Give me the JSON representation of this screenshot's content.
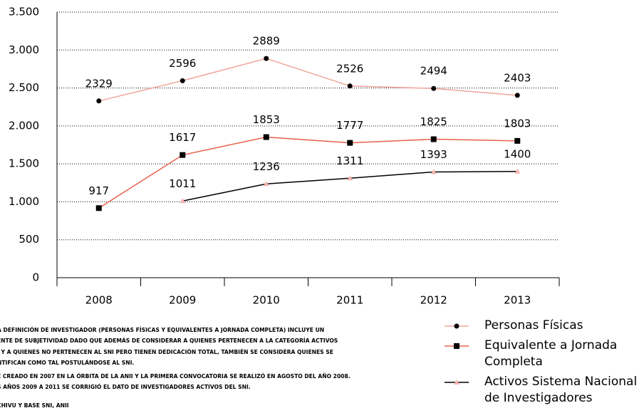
{
  "chart_data": {
    "type": "line",
    "categories": [
      "2008",
      "2009",
      "2010",
      "2011",
      "2012",
      "2013"
    ],
    "series": [
      {
        "name": "Personas Físicas",
        "color": "#f2a39b",
        "marker": "circle",
        "marker_color": "#000000",
        "values": [
          2329,
          2596,
          2889,
          2526,
          2494,
          2403
        ]
      },
      {
        "name": "Equivalente a Jornada Completa",
        "color": "#e8604c",
        "marker": "square",
        "marker_color": "#000000",
        "values": [
          917,
          1617,
          1853,
          1777,
          1825,
          1803
        ]
      },
      {
        "name": "Activos Sistema Nacional de Investigadores",
        "color": "#000000",
        "marker": "triangle",
        "marker_color": "#f5b3ad",
        "values": [
          null,
          1011,
          1236,
          1311,
          1393,
          1400
        ]
      }
    ],
    "ylim": [
      0,
      3500
    ],
    "yticks": [
      0,
      500,
      {
        "value": 1000,
        "label": "1.000"
      },
      {
        "value": 1500,
        "label": "1.500"
      },
      {
        "value": 2000,
        "label": "2.000"
      },
      {
        "value": 2500,
        "label": "2.500"
      },
      {
        "value": 3000,
        "label": "3.000"
      },
      {
        "value": 3500,
        "label": "3.500"
      }
    ],
    "grid": true,
    "data_labels": true,
    "legend": "bottom-right",
    "notes": [
      "A DEFINICIÓN DE INVESTIGADOR (PERSONAS FÍSICAS Y EQUIVALENTES A JORNADA COMPLETA) INCLUYE UN",
      "ENTE DE SUBJETIVIDAD DADO QUE ADEMÁS DE CONSIDERAR A QUIENES PERTENECEN A LA CATEGORÍA ACTIVOS",
      ", Y A QUIENES NO PERTENECEN AL SNI PERO TIENEN DEDICACIÓN TOTAL, TAMBIÉN SE CONSIDERA QUIENES SE",
      "NTIFICAN COMO TAL POSTULÁNDOSE AL SNI.",
      "E CREADO EN 2007 EN LA ÓRBITA DE LA ANII Y LA PRIMERA CONVOCATORIA SE REALIZÓ EN AGOSTO DEL AÑO 2008.",
      "S AÑOS 2009 A 2011 SE CORRIGIÓ EL DATO DE INVESTIGADORES ACTIVOS DEL SNI.",
      "CHIVU Y BASE SNI, ANII"
    ]
  }
}
